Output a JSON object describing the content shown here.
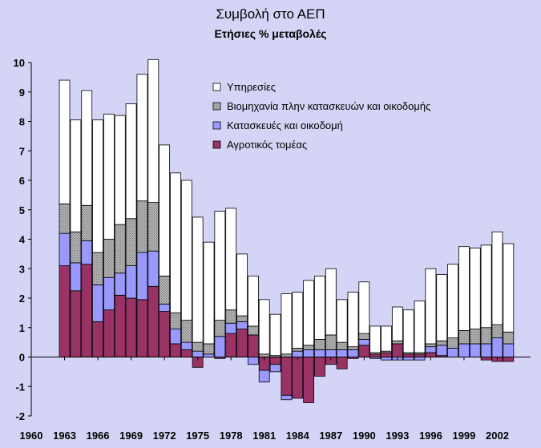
{
  "chart_data": {
    "type": "bar",
    "stacked": true,
    "title": "Συμβολή στο ΑΕΠ",
    "subtitle": "Ετήσιες % μεταβολές",
    "xlabel": "",
    "ylabel": "",
    "x_ticks": [
      "1960",
      "1963",
      "1966",
      "1969",
      "1972",
      "1975",
      "1978",
      "1981",
      "1984",
      "1987",
      "1990",
      "1993",
      "1996",
      "1999",
      "2002"
    ],
    "y_ticks": [
      "-2",
      "-1",
      "0",
      "1",
      "2",
      "3",
      "4",
      "5",
      "6",
      "7",
      "8",
      "9",
      "10"
    ],
    "xlim": [
      1960,
      2005
    ],
    "ylim": [
      -2,
      10
    ],
    "grid": false,
    "legend_position": "top-right inside plot",
    "colors": {
      "background": "#d4d4f6",
      "services": "#ffffff",
      "industry": "#a6a6a6",
      "construction": "#9999ff",
      "agriculture": "#993366"
    },
    "years": [
      1963,
      1964,
      1965,
      1966,
      1967,
      1968,
      1969,
      1970,
      1971,
      1972,
      1973,
      1974,
      1975,
      1976,
      1977,
      1978,
      1979,
      1980,
      1981,
      1982,
      1983,
      1984,
      1985,
      1986,
      1987,
      1988,
      1989,
      1990,
      1991,
      1992,
      1993,
      1994,
      1995,
      1996,
      1997,
      1998,
      1999,
      2000,
      2001,
      2002,
      2003
    ],
    "series": [
      {
        "name": "Αγροτικός τομέας",
        "values": [
          3.1,
          2.25,
          3.15,
          1.2,
          1.6,
          2.1,
          2.0,
          1.95,
          2.4,
          1.55,
          0.45,
          0.25,
          -0.35,
          0.0,
          -0.05,
          0.8,
          0.95,
          0.75,
          -0.45,
          -0.25,
          -1.3,
          -1.4,
          -1.55,
          -0.65,
          -0.25,
          -0.4,
          -0.05,
          0.4,
          0.1,
          0.15,
          0.45,
          0.1,
          0.1,
          0.15,
          0.05,
          0.0,
          0.0,
          0.0,
          -0.1,
          -0.15,
          -0.15
        ]
      },
      {
        "name": "Κατασκευές και οικοδομή",
        "values": [
          1.1,
          0.95,
          0.8,
          1.25,
          1.1,
          0.75,
          1.1,
          1.6,
          1.2,
          0.25,
          0.5,
          0.25,
          0.2,
          0.1,
          0.7,
          0.35,
          0.25,
          -0.25,
          -0.4,
          -0.25,
          -0.15,
          0.2,
          0.25,
          0.25,
          0.25,
          0.25,
          0.25,
          0.2,
          -0.05,
          -0.1,
          -0.1,
          -0.1,
          -0.1,
          0.2,
          0.35,
          0.3,
          0.45,
          0.45,
          0.45,
          0.65,
          0.45
        ]
      },
      {
        "name": "Βιομηχανία πλην κατασκευών και οικοδομής",
        "values": [
          1.0,
          1.05,
          1.2,
          1.1,
          1.3,
          1.65,
          1.6,
          1.75,
          1.65,
          0.95,
          0.55,
          0.75,
          0.3,
          0.35,
          0.55,
          0.45,
          0.2,
          0.3,
          0.1,
          0.05,
          0.1,
          0.1,
          0.15,
          0.35,
          0.5,
          0.25,
          0.1,
          0.2,
          0.05,
          0.05,
          0.1,
          0.05,
          0.05,
          0.1,
          0.15,
          0.35,
          0.45,
          0.5,
          0.55,
          0.45,
          0.4
        ]
      },
      {
        "name": "Υπηρεσίες",
        "values": [
          4.2,
          3.8,
          3.9,
          4.5,
          4.25,
          3.7,
          3.9,
          4.3,
          4.85,
          4.45,
          4.75,
          4.75,
          4.25,
          3.45,
          3.7,
          3.45,
          2.1,
          1.7,
          1.85,
          1.4,
          2.05,
          1.9,
          2.2,
          2.15,
          2.25,
          1.45,
          1.85,
          1.75,
          0.9,
          0.85,
          1.15,
          1.45,
          1.75,
          2.55,
          2.25,
          2.5,
          2.85,
          2.75,
          2.8,
          3.15,
          3.0
        ]
      }
    ]
  }
}
